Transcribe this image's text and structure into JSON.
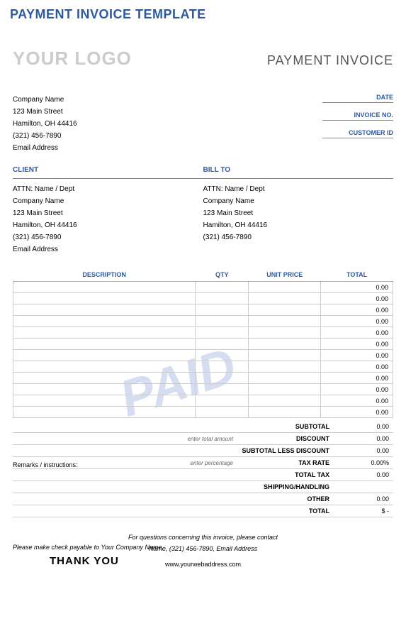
{
  "page_title": "PAYMENT INVOICE TEMPLATE",
  "logo_text": "YOUR LOGO",
  "doc_title": "PAYMENT INVOICE",
  "watermark": "PAID",
  "colors": {
    "accent": "#2c5aa0",
    "logo_gray": "#cccccc",
    "watermark": "#b8c8e8",
    "border": "#cccccc",
    "text": "#000000"
  },
  "company": {
    "name": "Company Name",
    "street": "123 Main Street",
    "city": "Hamilton, OH  44416",
    "phone": "(321) 456-7890",
    "email": "Email Address"
  },
  "meta": {
    "date_label": "DATE",
    "invoice_no_label": "INVOICE NO.",
    "customer_id_label": "CUSTOMER ID"
  },
  "client": {
    "header": "CLIENT",
    "attn": "ATTN: Name / Dept",
    "name": "Company Name",
    "street": "123 Main Street",
    "city": "Hamilton, OH  44416",
    "phone": "(321) 456-7890",
    "email": "Email Address"
  },
  "billto": {
    "header": "BILL TO",
    "attn": "ATTN: Name / Dept",
    "name": "Company Name",
    "street": "123 Main Street",
    "city": "Hamilton, OH  44416",
    "phone": "(321) 456-7890"
  },
  "table": {
    "columns": [
      "DESCRIPTION",
      "QTY",
      "UNIT PRICE",
      "TOTAL"
    ],
    "rows": [
      [
        "",
        "",
        "",
        "0.00"
      ],
      [
        "",
        "",
        "",
        "0.00"
      ],
      [
        "",
        "",
        "",
        "0.00"
      ],
      [
        "",
        "",
        "",
        "0.00"
      ],
      [
        "",
        "",
        "",
        "0.00"
      ],
      [
        "",
        "",
        "",
        "0.00"
      ],
      [
        "",
        "",
        "",
        "0.00"
      ],
      [
        "",
        "",
        "",
        "0.00"
      ],
      [
        "",
        "",
        "",
        "0.00"
      ],
      [
        "",
        "",
        "",
        "0.00"
      ],
      [
        "",
        "",
        "",
        "0.00"
      ],
      [
        "",
        "",
        "",
        "0.00"
      ]
    ]
  },
  "remarks_label": "Remarks / instructions:",
  "totals": [
    {
      "hint": "",
      "label": "SUBTOTAL",
      "value": "0.00"
    },
    {
      "hint": "enter total amount",
      "label": "DISCOUNT",
      "value": "0.00"
    },
    {
      "hint": "",
      "label": "SUBTOTAL LESS DISCOUNT",
      "value": "0.00"
    },
    {
      "hint": "enter percentage",
      "label": "TAX RATE",
      "value": "0.00%"
    },
    {
      "hint": "",
      "label": "TOTAL TAX",
      "value": "0.00"
    },
    {
      "hint": "",
      "label": "SHIPPING/HANDLING",
      "value": ""
    },
    {
      "hint": "",
      "label": "OTHER",
      "value": "0.00"
    },
    {
      "hint": "",
      "label": "TOTAL",
      "value": "$        -"
    }
  ],
  "payable_note": "Please make check payable to Your Company Name.",
  "thank_you": "THANK YOU",
  "footer": {
    "line1": "For questions concerning this invoice, please contact",
    "line2": "Name, (321) 456-7890, Email Address",
    "web": "www.yourwebaddress.com"
  }
}
